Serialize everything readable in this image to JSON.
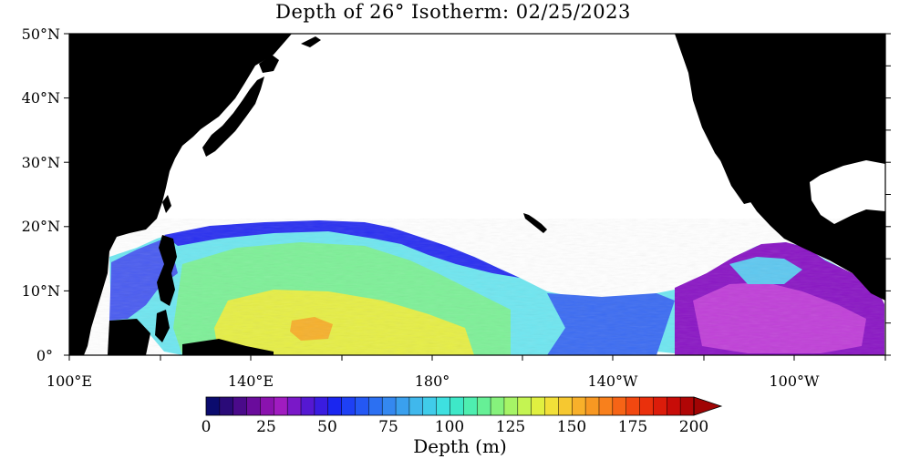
{
  "title": "Depth of 26° Isotherm: 02/25/2023",
  "y_axis": {
    "ticks": [
      "50°N",
      "40°N",
      "30°N",
      "20°N",
      "10°N",
      "0°"
    ]
  },
  "x_axis": {
    "ticks": [
      "100°E",
      "140°E",
      "180°",
      "140°W",
      "100°W"
    ]
  },
  "colorbar": {
    "labels": [
      "0",
      "25",
      "50",
      "75",
      "100",
      "125",
      "150",
      "175",
      "200"
    ],
    "title": "Depth (m)",
    "colors": [
      "#0b0b6e",
      "#2a0a78",
      "#4a0a8a",
      "#6a0c9c",
      "#8a12ae",
      "#a01cc0",
      "#7a18c8",
      "#5518d2",
      "#3a1ce0",
      "#1a26f0",
      "#1e40f4",
      "#2458f4",
      "#2c70f2",
      "#3488f0",
      "#3aa0ee",
      "#40b8ec",
      "#40ccea",
      "#3ee0e0",
      "#3ee8c8",
      "#4eeeb0",
      "#66f096",
      "#86f27c",
      "#a6f466",
      "#c4f452",
      "#e0f040",
      "#f2e038",
      "#f6c830",
      "#f8b02a",
      "#f89822",
      "#f8801c",
      "#f66416",
      "#f24810",
      "#ea300c",
      "#dc1c0a",
      "#c80c08",
      "#b00606"
    ],
    "over_color": "#a00404"
  },
  "colors": {
    "land": "#000000",
    "ocean_no_data": "#ffffff"
  }
}
